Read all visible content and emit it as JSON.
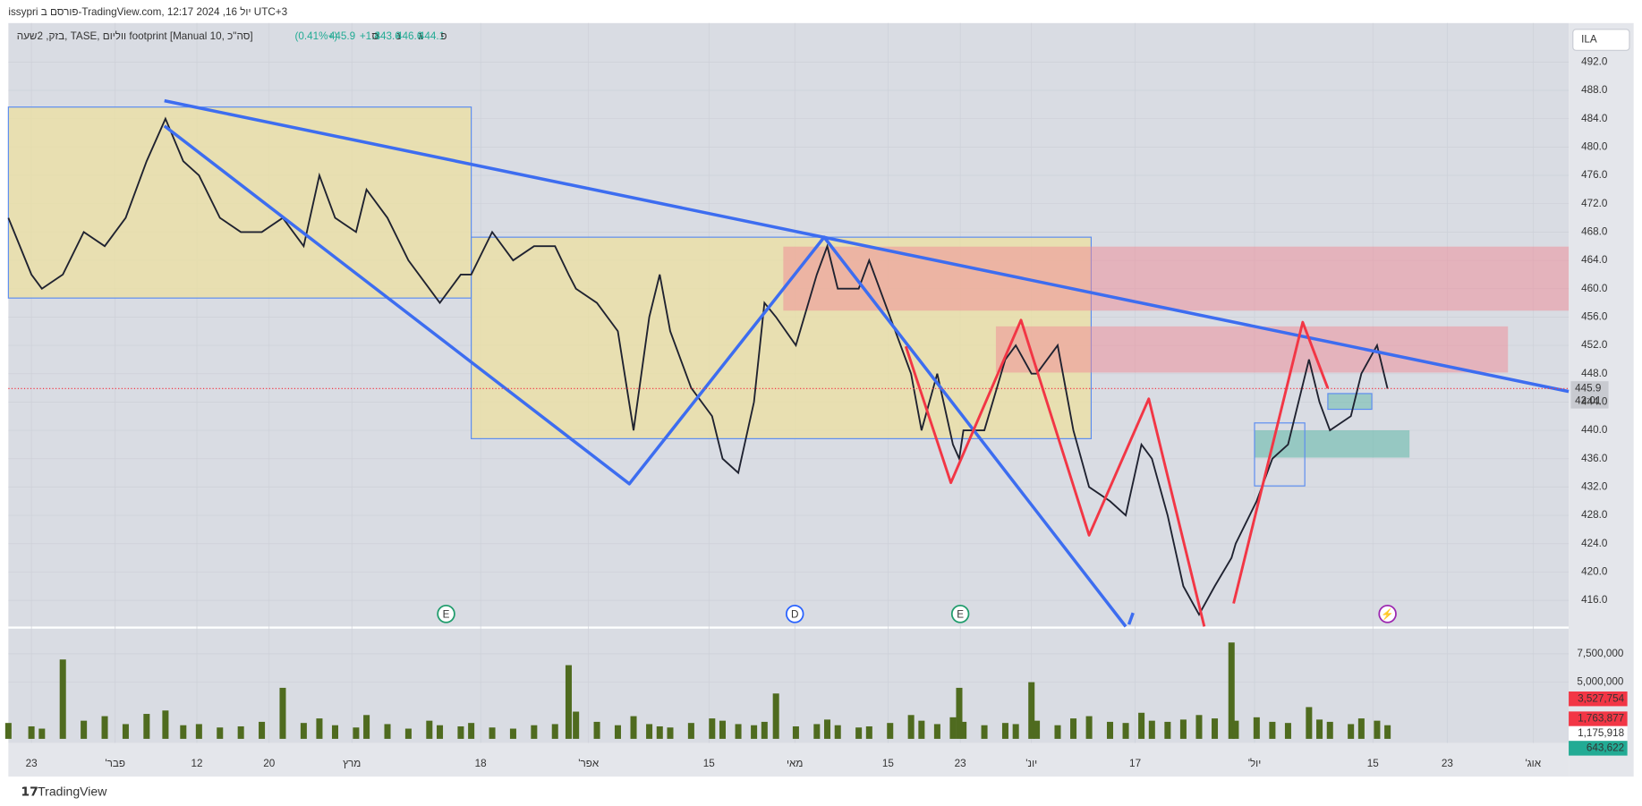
{
  "header": {
    "text": "issypri פורסם ב-TradingView.com, יול 16, 2024 12:17 UTC+3"
  },
  "chart_data": {
    "type": "line",
    "legend": {
      "text": "בזק, 2שעה, TASE, ווליום footprint [Manual 10, סה\"כ]",
      "ohlc": [
        {
          "label": "פ",
          "value": 444.1
        },
        {
          "label": "ג",
          "value": 446.6
        },
        {
          "label": "נ",
          "value": 443.6
        },
        {
          "label": "ס",
          "value": 445.9
        }
      ],
      "change": {
        "value": 1.8,
        "label": "+1.8"
      },
      "change_pct": {
        "value": 0.41,
        "label": "(+0.41%)"
      }
    },
    "currency": "ILA",
    "x": [
      8,
      30,
      40,
      60,
      80,
      100,
      120,
      140,
      158,
      175,
      190,
      210,
      230,
      250,
      270,
      290,
      305,
      320,
      340,
      350,
      370,
      390,
      410,
      420,
      440,
      450,
      470,
      490,
      510,
      530,
      543,
      550,
      570,
      590,
      605,
      620,
      630,
      640,
      660,
      680,
      690,
      705,
      720,
      730,
      741,
      760,
      780,
      790,
      800,
      820,
      830,
      850,
      870,
      880,
      895,
      910,
      916,
      920,
      940,
      960,
      970,
      985,
      990,
      1010,
      1025,
      1040,
      1060,
      1075,
      1090,
      1100,
      1115,
      1130,
      1145,
      1160,
      1176,
      1180,
      1200,
      1215,
      1230,
      1250,
      1260,
      1270,
      1290,
      1300,
      1315,
      1325
    ],
    "xlim": [
      8,
      1498
    ],
    "xticks": [
      {
        "value": 30,
        "label": "23"
      },
      {
        "value": 110,
        "label": "'פבר"
      },
      {
        "value": 188,
        "label": "12"
      },
      {
        "value": 257,
        "label": "20"
      },
      {
        "value": 336,
        "label": "מרץ"
      },
      {
        "value": 459,
        "label": "18"
      },
      {
        "value": 562,
        "label": "'אפר"
      },
      {
        "value": 677,
        "label": "15"
      },
      {
        "value": 759,
        "label": "מאי"
      },
      {
        "value": 848,
        "label": "15"
      },
      {
        "value": 917,
        "label": "23"
      },
      {
        "value": 985,
        "label": "'יונ"
      },
      {
        "value": 1084,
        "label": "17"
      },
      {
        "value": 1198,
        "label": "'יול"
      },
      {
        "value": 1311,
        "label": "15"
      },
      {
        "value": 1382,
        "label": "23"
      },
      {
        "value": 1464,
        "label": "'אוג"
      }
    ],
    "price": {
      "color": "#1f2230",
      "values": [
        470,
        462,
        460,
        462,
        468,
        466,
        470,
        478,
        484,
        478,
        476,
        470,
        468,
        468,
        470,
        466,
        476,
        470,
        468,
        474,
        470,
        464,
        460,
        458,
        462,
        462,
        468,
        464,
        466,
        466,
        462,
        460,
        458,
        454,
        440,
        456,
        462,
        454,
        446,
        442,
        436,
        434,
        444,
        458,
        456,
        452,
        462,
        466,
        460,
        460,
        464,
        456,
        448,
        440,
        448,
        438,
        436,
        440,
        440,
        450,
        452,
        448,
        448,
        452,
        440,
        432,
        430,
        428,
        438,
        436,
        428,
        418,
        414,
        418,
        422,
        424,
        430,
        436,
        438,
        450,
        444,
        440,
        442,
        448,
        452,
        445.9
      ]
    },
    "ylim": [
      412.3,
      497.5
    ],
    "yticks": [
      {
        "value": 416,
        "label": "416.0"
      },
      {
        "value": 420,
        "label": "420.0"
      },
      {
        "value": 424,
        "label": "424.0"
      },
      {
        "value": 428,
        "label": "428.0"
      },
      {
        "value": 432,
        "label": "432.0"
      },
      {
        "value": 436,
        "label": "436.0"
      },
      {
        "value": 440,
        "label": "440.0"
      },
      {
        "value": 444,
        "label": "444.0"
      },
      {
        "value": 448,
        "label": "448.0"
      },
      {
        "value": 452,
        "label": "452.0"
      },
      {
        "value": 456,
        "label": "456.0"
      },
      {
        "value": 460,
        "label": "460.0"
      },
      {
        "value": 464,
        "label": "464.0"
      },
      {
        "value": 468,
        "label": "468.0"
      },
      {
        "value": 472,
        "label": "472.0"
      },
      {
        "value": 476,
        "label": "476.0"
      },
      {
        "value": 480,
        "label": "480.0"
      },
      {
        "value": 484,
        "label": "484.0"
      },
      {
        "value": 488,
        "label": "488.0"
      },
      {
        "value": 492,
        "label": "492.0"
      }
    ],
    "last_price": 445.9,
    "countdown": "42:01",
    "volume": {
      "color": "#4f6b1f",
      "values": [
        1400000,
        1100000,
        900000,
        7000000,
        1600000,
        2000000,
        1300000,
        2200000,
        2500000,
        1200000,
        1300000,
        1000000,
        1100000,
        1500000,
        4500000,
        1400000,
        1800000,
        1200000,
        1000000,
        2100000,
        1300000,
        900000,
        1600000,
        1200000,
        1100000,
        1400000,
        1000000,
        900000,
        1200000,
        1300000,
        6500000,
        2400000,
        1500000,
        1200000,
        2000000,
        1300000,
        1100000,
        1000000,
        1400000,
        1800000,
        1600000,
        1300000,
        1200000,
        1500000,
        4000000,
        1100000,
        1300000,
        1700000,
        1200000,
        1000000,
        1100000,
        1400000,
        2100000,
        1600000,
        1300000,
        1900000,
        4500000,
        1500000,
        1200000,
        1400000,
        1300000,
        5000000,
        1600000,
        1200000,
        1800000,
        2000000,
        1500000,
        1400000,
        2300000,
        1600000,
        1500000,
        1700000,
        2100000,
        1800000,
        8500000,
        1600000,
        1900000,
        1500000,
        1400000,
        2800000,
        1700000,
        1500000,
        1300000,
        1800000,
        1600000,
        1200000
      ]
    },
    "vlim": [
      0,
      9630000
    ],
    "vticks": [
      {
        "value": 5000000,
        "label": "5,000,000"
      },
      {
        "value": 7500000,
        "label": "7,500,000"
      }
    ],
    "volume_tags": [
      {
        "value": 3527754,
        "label": "3,527,754",
        "color": "#f23645"
      },
      {
        "value": 1763877,
        "label": "1,763,877",
        "color": "#f23645"
      },
      {
        "value": 1175918,
        "label": "1,175,918",
        "color": "#ffffff"
      },
      {
        "value": 643622,
        "label": "643,622",
        "color": "#22ab94"
      }
    ],
    "events": [
      {
        "x": 426,
        "label": "E",
        "color": "#1f9c6c"
      },
      {
        "x": 759,
        "label": "D",
        "color": "#2962ff"
      },
      {
        "x": 917,
        "label": "E",
        "color": "#1f9c6c"
      },
      {
        "x": 1325,
        "label": "⚡",
        "color": "#9c27b0"
      }
    ]
  },
  "footer": {
    "brand": "TradingView"
  }
}
